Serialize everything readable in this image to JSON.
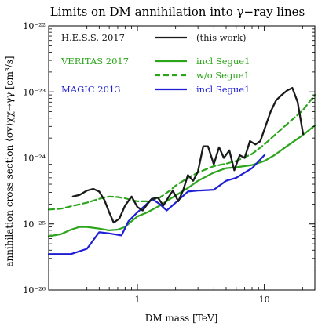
{
  "chart_data": {
    "type": "line",
    "title": "Limits on DM annihilation into γ−ray lines",
    "xlabel": "DM mass [TeV]",
    "ylabel": "annihilation cross section ⟨σv⟩χχ→γγ [cm³/s]",
    "xscale": "log",
    "yscale": "log",
    "xlim": [
      0.2,
      25
    ],
    "ylim": [
      1e-26,
      1e-22
    ],
    "grid": false,
    "x_ticks": [
      {
        "value": 1,
        "label": "1"
      },
      {
        "value": 10,
        "label": "10"
      }
    ],
    "y_ticks": [
      {
        "value": 1e-26,
        "label": "10⁻²⁶"
      },
      {
        "value": 1e-25,
        "label": "10⁻²⁵"
      },
      {
        "value": 1e-24,
        "label": "10⁻²⁴"
      },
      {
        "value": 1e-23,
        "label": "10⁻²³"
      },
      {
        "value": 1e-22,
        "label": "10⁻²²"
      }
    ],
    "legend": {
      "placement": "top-left",
      "groups": [
        {
          "experiment": "H.E.S.S. 2017",
          "color": "#1a1a1a",
          "entries": [
            {
              "label": "(this work)",
              "dashed": false,
              "series": 0
            }
          ]
        },
        {
          "experiment": "VERITAS 2017",
          "color": "#2ca51c",
          "entries": [
            {
              "label": "incl Segue1",
              "dashed": false,
              "series": 1
            },
            {
              "label": "w/o Segue1",
              "dashed": true,
              "series": 2
            }
          ]
        },
        {
          "experiment": "MAGIC 2013",
          "color": "#1f1fd6",
          "entries": [
            {
              "label": "incl Segue1",
              "dashed": false,
              "series": 3
            }
          ]
        }
      ]
    },
    "series": [
      {
        "color": "#1a1a1a",
        "dashed": false,
        "points": [
          [
            0.31,
            2.6e-25
          ],
          [
            0.35,
            2.75e-25
          ],
          [
            0.4,
            3.2e-25
          ],
          [
            0.45,
            3.4e-25
          ],
          [
            0.5,
            3.1e-25
          ],
          [
            0.55,
            2.3e-25
          ],
          [
            0.6,
            1.5e-25
          ],
          [
            0.65,
            1.05e-25
          ],
          [
            0.72,
            1.2e-25
          ],
          [
            0.8,
            1.9e-25
          ],
          [
            0.9,
            2.6e-25
          ],
          [
            1.0,
            1.8e-25
          ],
          [
            1.1,
            1.6e-25
          ],
          [
            1.2,
            2e-25
          ],
          [
            1.3,
            2.4e-25
          ],
          [
            1.45,
            2.5e-25
          ],
          [
            1.6,
            1.9e-25
          ],
          [
            1.75,
            2.5e-25
          ],
          [
            1.9,
            3.2e-25
          ],
          [
            2.1,
            2.2e-25
          ],
          [
            2.3,
            3.3e-25
          ],
          [
            2.5,
            5.5e-25
          ],
          [
            2.75,
            4.5e-25
          ],
          [
            3.0,
            6.2e-25
          ],
          [
            3.3,
            1.5e-24
          ],
          [
            3.6,
            1.5e-24
          ],
          [
            4.0,
            8e-25
          ],
          [
            4.4,
            1.45e-24
          ],
          [
            4.8,
            1e-24
          ],
          [
            5.3,
            1.3e-24
          ],
          [
            5.8,
            6.5e-25
          ],
          [
            6.4,
            1.1e-24
          ],
          [
            7.0,
            1e-24
          ],
          [
            7.7,
            1.8e-24
          ],
          [
            8.5,
            1.6e-24
          ],
          [
            9.3,
            1.8e-24
          ],
          [
            10.2,
            3e-24
          ],
          [
            11.2,
            5e-24
          ],
          [
            12.4,
            7.5e-24
          ],
          [
            13.7,
            9e-24
          ],
          [
            15.1,
            1.05e-23
          ],
          [
            16.6,
            1.15e-23
          ],
          [
            18.3,
            7e-24
          ],
          [
            20.2,
            2.3e-24
          ]
        ]
      },
      {
        "color": "#2ca51c",
        "dashed": false,
        "points": [
          [
            0.2,
            6.5e-26
          ],
          [
            0.25,
            7e-26
          ],
          [
            0.3,
            8.2e-26
          ],
          [
            0.35,
            9e-26
          ],
          [
            0.4,
            9e-26
          ],
          [
            0.5,
            8.5e-26
          ],
          [
            0.6,
            8e-26
          ],
          [
            0.7,
            8.2e-26
          ],
          [
            0.8,
            9e-26
          ],
          [
            0.9,
            1.1e-25
          ],
          [
            1.0,
            1.3e-25
          ],
          [
            1.2,
            1.5e-25
          ],
          [
            1.5,
            1.9e-25
          ],
          [
            2.0,
            2.7e-25
          ],
          [
            2.5,
            3.5e-25
          ],
          [
            3.0,
            4.5e-25
          ],
          [
            4.0,
            6e-25
          ],
          [
            5.0,
            7e-25
          ],
          [
            6.0,
            7.2e-25
          ],
          [
            8.0,
            7.8e-25
          ],
          [
            10.0,
            9e-25
          ],
          [
            12.0,
            1.1e-24
          ],
          [
            15.0,
            1.5e-24
          ],
          [
            20.0,
            2.2e-24
          ],
          [
            25.0,
            3.1e-24
          ]
        ]
      },
      {
        "color": "#2ca51c",
        "dashed": true,
        "points": [
          [
            0.2,
            1.65e-25
          ],
          [
            0.25,
            1.7e-25
          ],
          [
            0.3,
            1.85e-25
          ],
          [
            0.4,
            2.1e-25
          ],
          [
            0.5,
            2.4e-25
          ],
          [
            0.6,
            2.6e-25
          ],
          [
            0.7,
            2.55e-25
          ],
          [
            0.8,
            2.45e-25
          ],
          [
            0.9,
            2.3e-25
          ],
          [
            1.0,
            2.2e-25
          ],
          [
            1.2,
            2.2e-25
          ],
          [
            1.5,
            2.5e-25
          ],
          [
            1.8,
            3.2e-25
          ],
          [
            2.0,
            3.8e-25
          ],
          [
            2.5,
            5e-25
          ],
          [
            3.0,
            6e-25
          ],
          [
            4.0,
            7.5e-25
          ],
          [
            5.0,
            8.2e-25
          ],
          [
            6.0,
            9e-25
          ],
          [
            8.0,
            1.15e-24
          ],
          [
            10.0,
            1.6e-24
          ],
          [
            12.0,
            2.2e-24
          ],
          [
            15.0,
            3.2e-24
          ],
          [
            20.0,
            5.2e-24
          ],
          [
            25.0,
            9e-24
          ]
        ]
      },
      {
        "color": "#1f1fd6",
        "dashed": false,
        "points": [
          [
            0.2,
            3.5e-26
          ],
          [
            0.3,
            3.5e-26
          ],
          [
            0.4,
            4.2e-26
          ],
          [
            0.5,
            7.5e-26
          ],
          [
            0.6,
            7.2e-26
          ],
          [
            0.75,
            6.7e-26
          ],
          [
            0.85,
            1.1e-25
          ],
          [
            1.0,
            1.5e-25
          ],
          [
            1.15,
            1.9e-25
          ],
          [
            1.3,
            2.4e-25
          ],
          [
            1.5,
            2e-25
          ],
          [
            1.7,
            1.6e-25
          ],
          [
            2.0,
            2.1e-25
          ],
          [
            2.5,
            3.1e-25
          ],
          [
            3.0,
            3.2e-25
          ],
          [
            4.0,
            3.3e-25
          ],
          [
            5.0,
            4.5e-25
          ],
          [
            6.0,
            5e-25
          ],
          [
            8.0,
            7e-25
          ],
          [
            10.0,
            1.1e-24
          ]
        ]
      }
    ]
  }
}
